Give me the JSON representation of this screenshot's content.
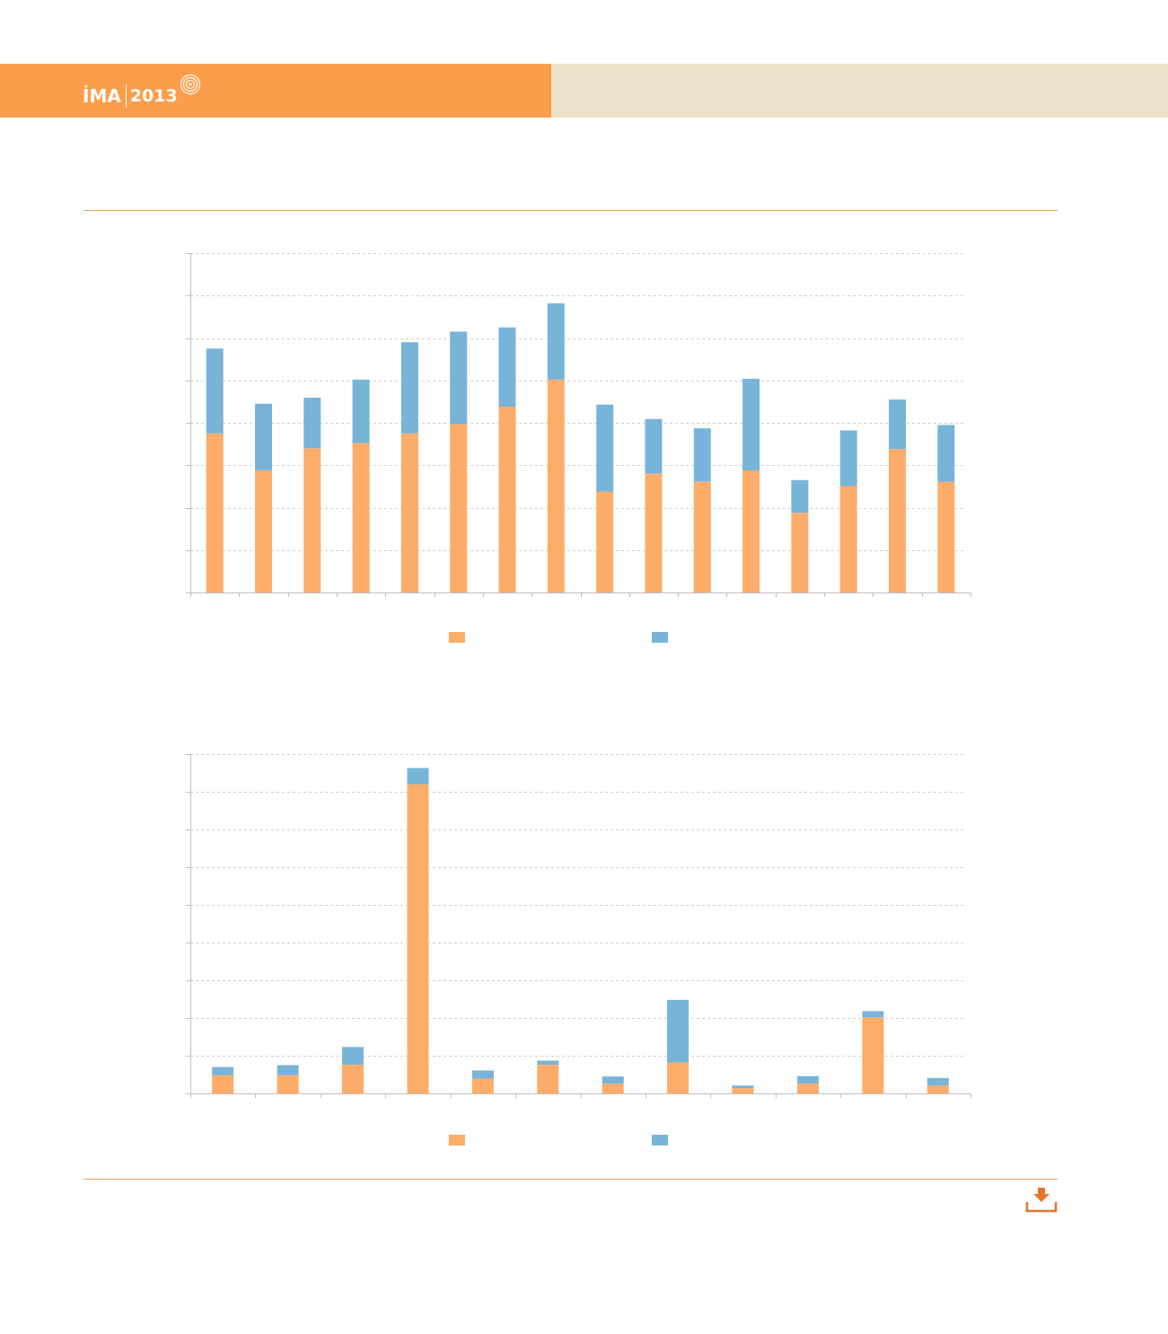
{
  "header": {
    "brand": "İMA",
    "year": "2013"
  },
  "colors": {
    "header_orange": "#fb9e4b",
    "header_beige": "#ece1cb",
    "series_orange": "#fdac6a",
    "series_blue": "#78b4d8",
    "rule": "#f2a25f",
    "axis": "#bfbfbf"
  },
  "icons": {
    "logo": "concentric-rings-icon",
    "download": "download-tray-icon"
  },
  "chart_data": [
    {
      "type": "bar",
      "stacked": true,
      "ylim": [
        0,
        8
      ],
      "grid": true,
      "legend": "bottom-center",
      "series": [
        {
          "values": [
            3.75,
            2.88,
            3.4,
            3.52,
            3.75,
            3.97,
            4.38,
            5.02,
            2.38,
            2.8,
            2.61,
            2.88,
            1.88,
            2.51,
            3.38,
            2.61
          ]
        },
        {
          "values": [
            2.0,
            1.57,
            1.19,
            1.5,
            2.15,
            2.18,
            1.87,
            1.8,
            2.05,
            1.29,
            1.26,
            2.16,
            0.77,
            1.31,
            1.17,
            1.34
          ]
        }
      ]
    },
    {
      "type": "bar",
      "stacked": true,
      "ylim": [
        0,
        9
      ],
      "grid": true,
      "legend": "bottom-center",
      "series": [
        {
          "values": [
            0.48,
            0.48,
            0.76,
            8.2,
            0.39,
            0.76,
            0.26,
            0.82,
            0.14,
            0.26,
            2.02,
            0.21
          ]
        },
        {
          "values": [
            0.22,
            0.27,
            0.47,
            0.43,
            0.22,
            0.11,
            0.19,
            1.66,
            0.07,
            0.2,
            0.16,
            0.2
          ]
        }
      ]
    }
  ]
}
